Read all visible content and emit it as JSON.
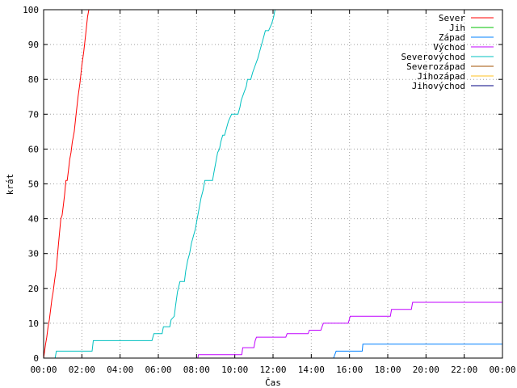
{
  "chart_data": {
    "type": "line",
    "title": "",
    "xlabel": "Čas",
    "ylabel": "krát",
    "xlim": [
      0,
      1440
    ],
    "ylim": [
      0,
      100
    ],
    "x_unit": "minutes",
    "x_ticks": [
      {
        "value": 0,
        "label": "00:00"
      },
      {
        "value": 120,
        "label": "02:00"
      },
      {
        "value": 240,
        "label": "04:00"
      },
      {
        "value": 360,
        "label": "06:00"
      },
      {
        "value": 480,
        "label": "08:00"
      },
      {
        "value": 600,
        "label": "10:00"
      },
      {
        "value": 720,
        "label": "12:00"
      },
      {
        "value": 840,
        "label": "14:00"
      },
      {
        "value": 960,
        "label": "16:00"
      },
      {
        "value": 1080,
        "label": "18:00"
      },
      {
        "value": 1200,
        "label": "20:00"
      },
      {
        "value": 1320,
        "label": "22:00"
      },
      {
        "value": 1440,
        "label": "00:00"
      }
    ],
    "y_ticks": [
      0,
      10,
      20,
      30,
      40,
      50,
      60,
      70,
      80,
      90,
      100
    ],
    "grid": true,
    "legend": "top-right",
    "series": [
      {
        "name": "Sever",
        "color": "#ff0000",
        "points": [
          [
            0,
            0
          ],
          [
            3,
            2
          ],
          [
            6,
            4
          ],
          [
            10,
            6
          ],
          [
            14,
            9
          ],
          [
            18,
            11
          ],
          [
            22,
            14
          ],
          [
            26,
            17
          ],
          [
            30,
            19
          ],
          [
            34,
            22
          ],
          [
            40,
            26
          ],
          [
            46,
            32
          ],
          [
            50,
            36
          ],
          [
            54,
            40
          ],
          [
            58,
            41
          ],
          [
            62,
            44
          ],
          [
            66,
            47
          ],
          [
            70,
            51
          ],
          [
            74,
            51
          ],
          [
            78,
            54
          ],
          [
            82,
            57
          ],
          [
            86,
            59
          ],
          [
            90,
            62
          ],
          [
            96,
            65
          ],
          [
            102,
            70
          ],
          [
            108,
            75
          ],
          [
            114,
            79
          ],
          [
            120,
            84
          ],
          [
            126,
            88
          ],
          [
            132,
            93
          ],
          [
            138,
            98
          ],
          [
            142,
            100
          ]
        ]
      },
      {
        "name": "Jih",
        "color": "#00c000",
        "points": []
      },
      {
        "name": "Západ",
        "color": "#0080ff",
        "points": [
          [
            0,
            0
          ],
          [
            910,
            0
          ],
          [
            918,
            2
          ],
          [
            1000,
            2
          ],
          [
            1002,
            4
          ],
          [
            1440,
            4
          ]
        ]
      },
      {
        "name": "Východ",
        "color": "#c000ff",
        "points": [
          [
            0,
            0
          ],
          [
            484,
            0
          ],
          [
            486,
            1
          ],
          [
            622,
            1
          ],
          [
            625,
            3
          ],
          [
            660,
            3
          ],
          [
            664,
            5
          ],
          [
            668,
            6
          ],
          [
            760,
            6
          ],
          [
            764,
            7
          ],
          [
            830,
            7
          ],
          [
            834,
            8
          ],
          [
            870,
            8
          ],
          [
            874,
            9
          ],
          [
            878,
            10
          ],
          [
            956,
            10
          ],
          [
            962,
            12
          ],
          [
            1088,
            12
          ],
          [
            1092,
            14
          ],
          [
            1154,
            14
          ],
          [
            1158,
            16
          ],
          [
            1440,
            16
          ]
        ]
      },
      {
        "name": "Severovýchod",
        "color": "#00c0c0",
        "points": [
          [
            0,
            0
          ],
          [
            36,
            0
          ],
          [
            40,
            2
          ],
          [
            152,
            2
          ],
          [
            156,
            5
          ],
          [
            340,
            5
          ],
          [
            346,
            7
          ],
          [
            372,
            7
          ],
          [
            376,
            9
          ],
          [
            396,
            9
          ],
          [
            400,
            11
          ],
          [
            410,
            12
          ],
          [
            414,
            15
          ],
          [
            420,
            19
          ],
          [
            428,
            22
          ],
          [
            442,
            22
          ],
          [
            446,
            25
          ],
          [
            452,
            28
          ],
          [
            458,
            30
          ],
          [
            464,
            33
          ],
          [
            470,
            35
          ],
          [
            476,
            37
          ],
          [
            482,
            40
          ],
          [
            488,
            43
          ],
          [
            494,
            46
          ],
          [
            500,
            48
          ],
          [
            506,
            51
          ],
          [
            530,
            51
          ],
          [
            534,
            53
          ],
          [
            540,
            56
          ],
          [
            546,
            59
          ],
          [
            552,
            60
          ],
          [
            556,
            62
          ],
          [
            562,
            64
          ],
          [
            568,
            64
          ],
          [
            574,
            66
          ],
          [
            580,
            68
          ],
          [
            590,
            70
          ],
          [
            610,
            70
          ],
          [
            616,
            72
          ],
          [
            620,
            74
          ],
          [
            628,
            76
          ],
          [
            636,
            78
          ],
          [
            640,
            80
          ],
          [
            650,
            80
          ],
          [
            656,
            82
          ],
          [
            664,
            84
          ],
          [
            672,
            86
          ],
          [
            678,
            88
          ],
          [
            684,
            90
          ],
          [
            690,
            92
          ],
          [
            696,
            94
          ],
          [
            706,
            94
          ],
          [
            716,
            96
          ],
          [
            722,
            98
          ],
          [
            726,
            100
          ]
        ]
      },
      {
        "name": "Severozápad",
        "color": "#a05000",
        "points": []
      },
      {
        "name": "Jihozápad",
        "color": "#ffc020",
        "points": []
      },
      {
        "name": "Jihovýchod",
        "color": "#000080",
        "points": []
      }
    ]
  }
}
